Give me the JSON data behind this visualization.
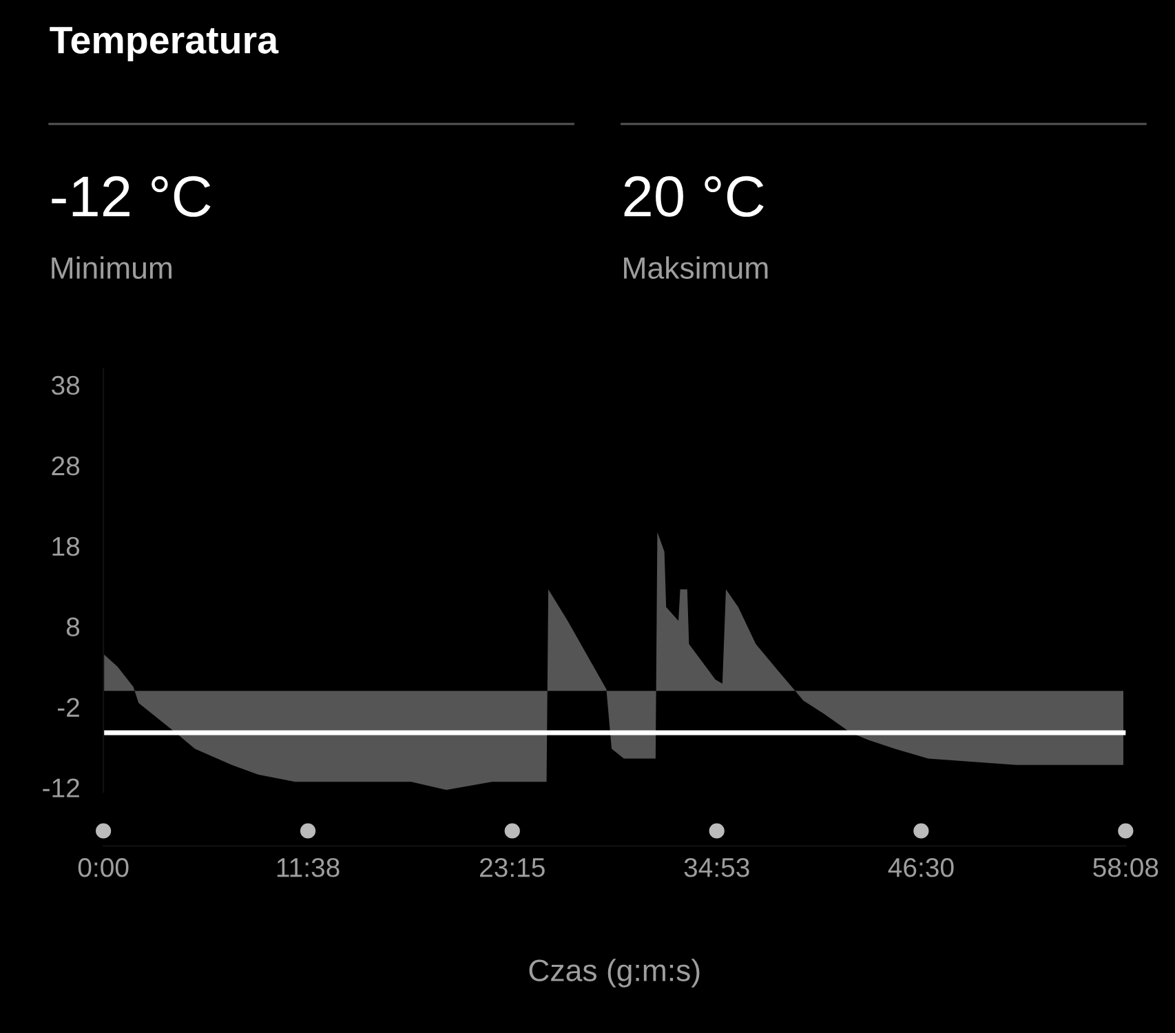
{
  "chart_data": {
    "type": "area",
    "title": "Temperatura",
    "annotations": [
      "-12 °C",
      "Minimum",
      "20 °C",
      "Maksimum"
    ],
    "xlabel": "Czas (g:m:s)",
    "x": [
      0.0,
      0.8,
      1.7,
      2.0,
      4.0,
      5.2,
      7.3,
      8.8,
      10.9,
      17.5,
      19.5,
      22.1,
      25.2,
      25.3,
      26.4,
      28.6,
      28.9,
      29.6,
      31.4,
      31.5,
      31.9,
      32.0,
      32.7,
      32.8,
      33.2,
      33.3,
      34.8,
      35.2,
      35.4,
      36.1,
      37.1,
      38.4,
      39.3,
      39.8,
      41.0,
      42.5,
      43.5,
      45.0,
      46.9,
      51.9,
      58.0
    ],
    "series": [
      {
        "color": "#555555",
        "values": [
          4.6,
          3.0,
          0.5,
          -1.5,
          -5.0,
          -7.2,
          -9.2,
          -10.4,
          -11.3,
          -11.3,
          -12.3,
          -11.3,
          -11.3,
          12.6,
          8.7,
          0.2,
          -7.2,
          -8.4,
          -8.4,
          19.7,
          17.3,
          10.4,
          8.7,
          12.6,
          12.6,
          5.8,
          1.4,
          0.9,
          12.6,
          10.4,
          5.8,
          2.4,
          0.1,
          -1.2,
          -2.9,
          -5.2,
          -6.1,
          -7.2,
          -8.4,
          -9.2,
          -9.2
        ]
      }
    ],
    "xlim": [
      0,
      58.13
    ],
    "xticks": [
      {
        "value": 0,
        "label": "0:00"
      },
      {
        "value": 11.63,
        "label": "11:38"
      },
      {
        "value": 23.25,
        "label": "23:15"
      },
      {
        "value": 34.88,
        "label": "34:53"
      },
      {
        "value": 46.5,
        "label": "46:30"
      },
      {
        "value": 58.13,
        "label": "58:08"
      }
    ],
    "ylim": [
      -12.6,
      40
    ],
    "yticks": [
      -12,
      -2,
      8,
      18,
      28,
      38
    ],
    "ref_lines": [
      {
        "axis": "y",
        "value": -5.2,
        "color": "#ffffff"
      }
    ],
    "grid": false
  }
}
